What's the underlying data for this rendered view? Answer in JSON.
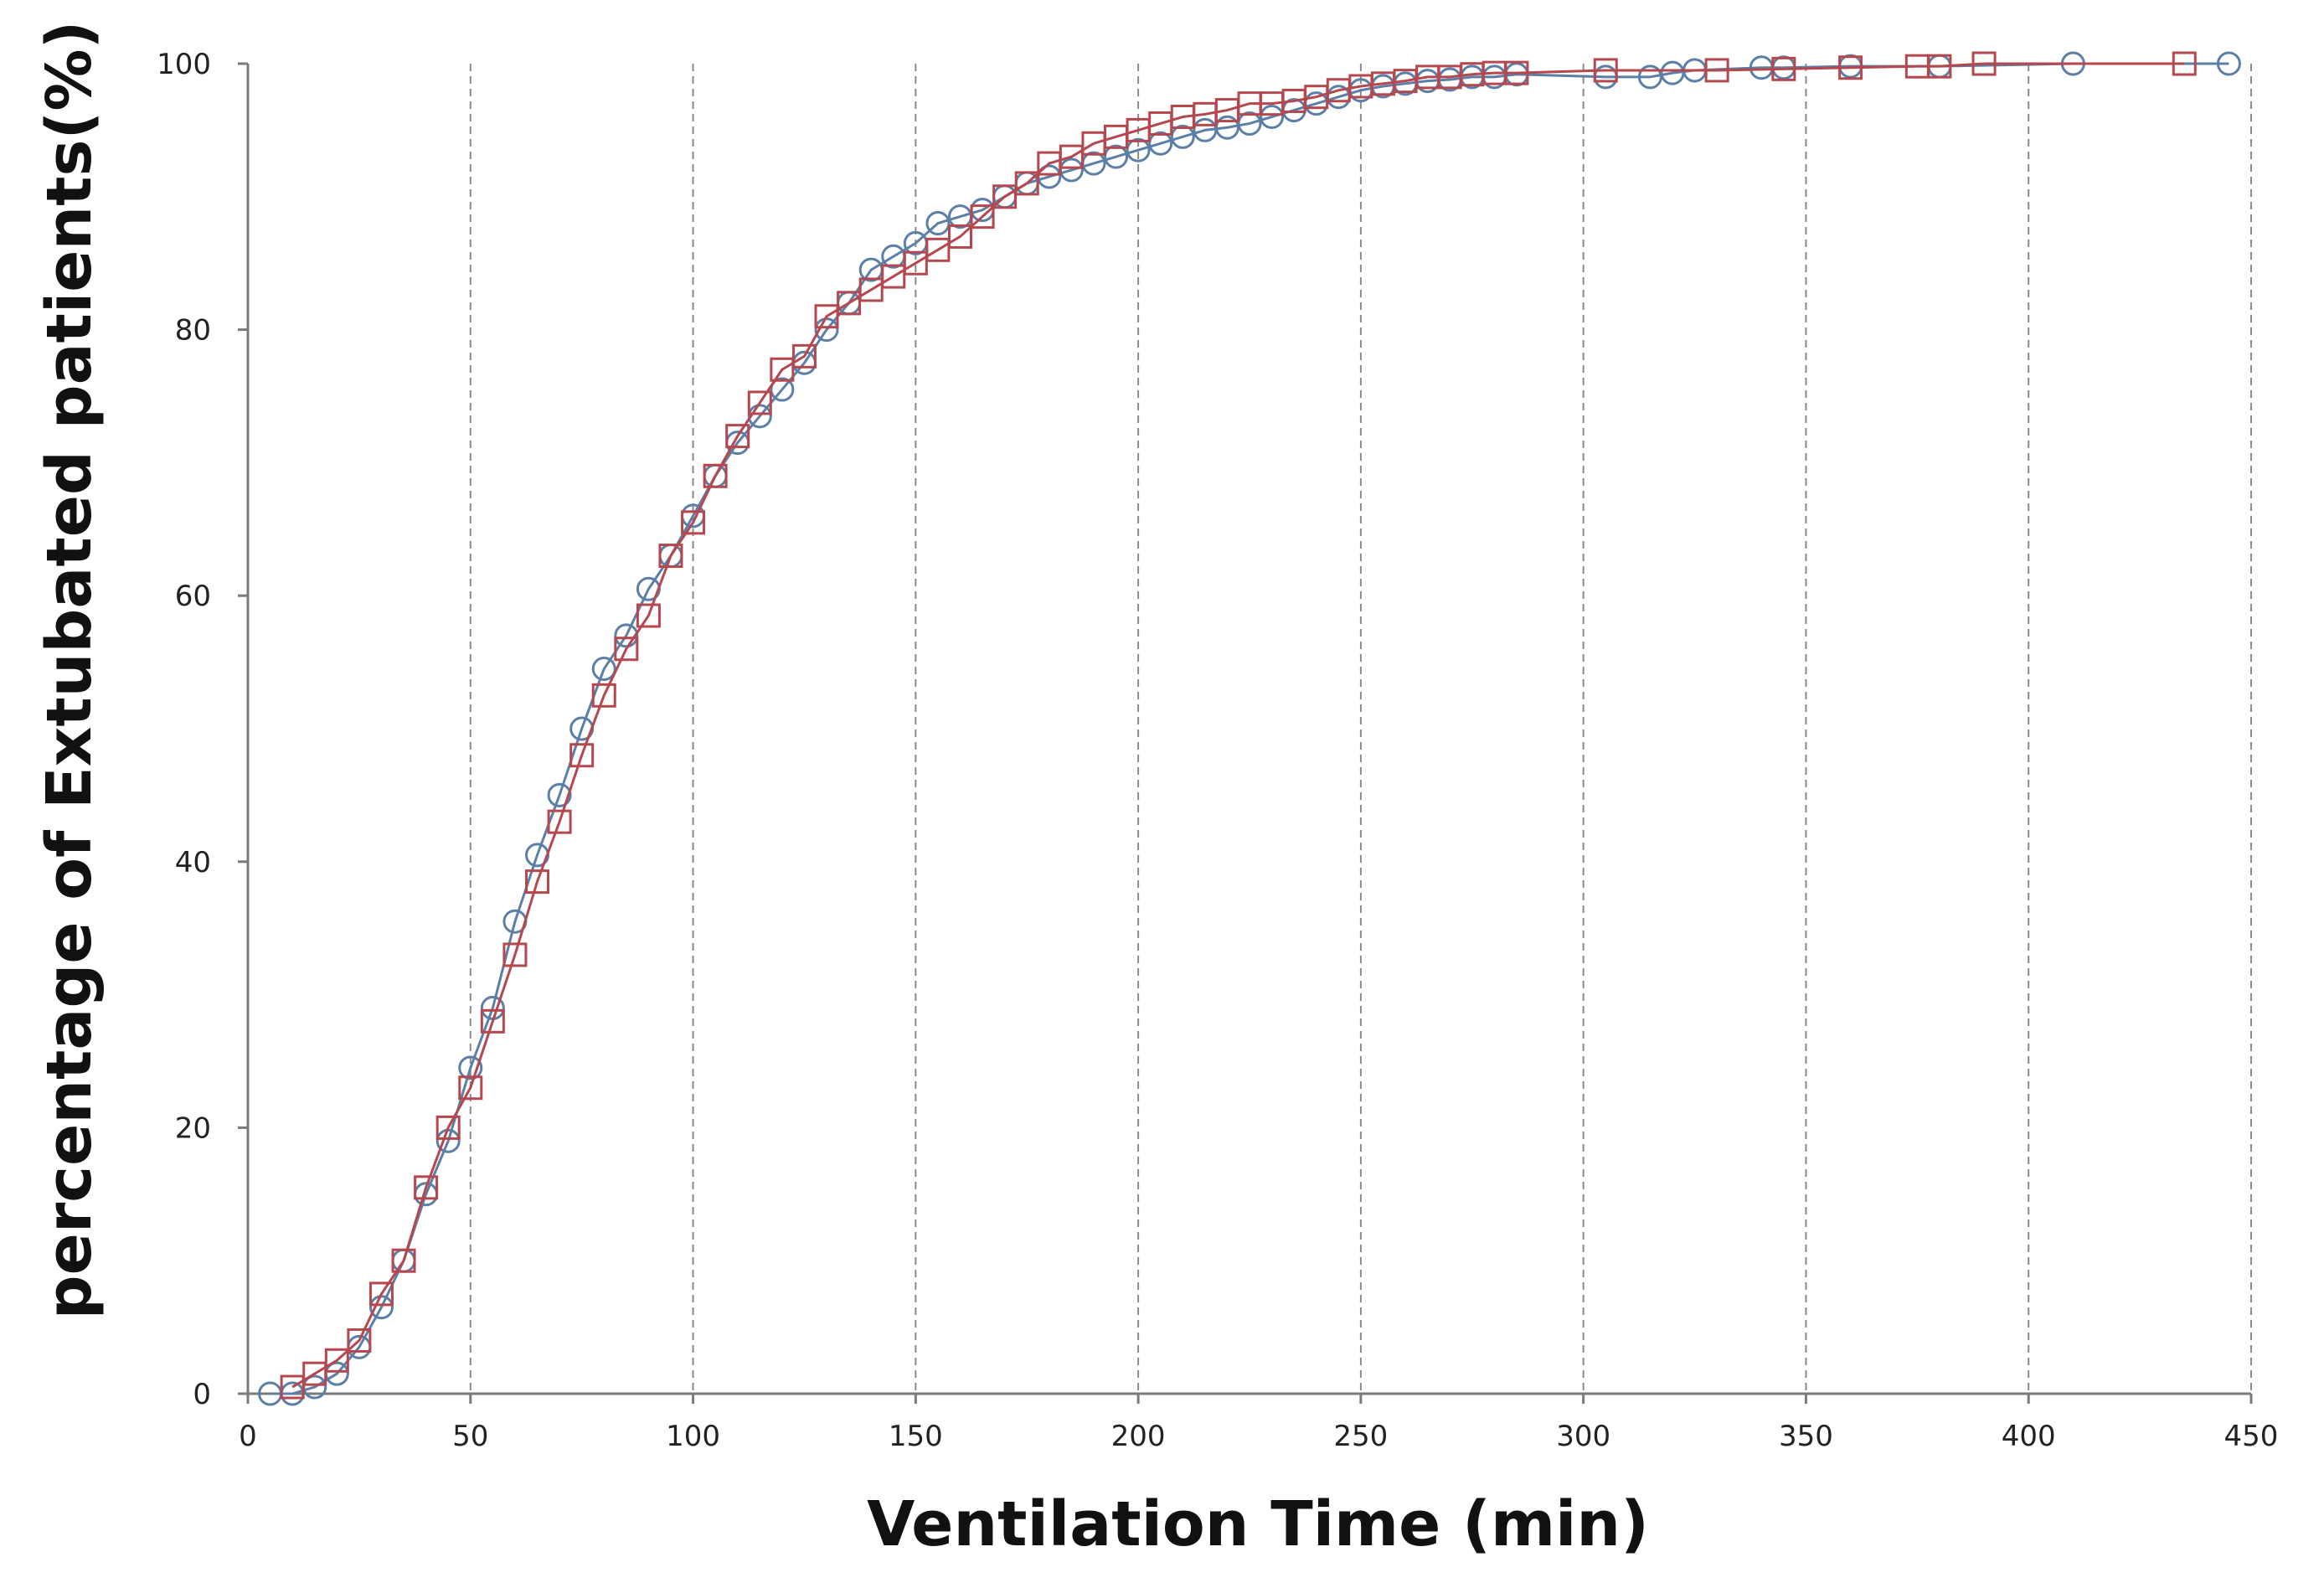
{
  "chart_data": {
    "type": "line",
    "title": "",
    "xlabel": "Ventilation Time (min)",
    "ylabel": "percentage of Extubated patients(%)",
    "xlim": [
      0,
      450
    ],
    "ylim": [
      0,
      100
    ],
    "xticks": [
      0,
      50,
      100,
      150,
      200,
      250,
      300,
      350,
      400,
      450
    ],
    "yticks": [
      0,
      20,
      40,
      60,
      80,
      100
    ],
    "vertical_gridlines": true,
    "legend": "none",
    "series": [
      {
        "name": "circle-series",
        "marker": "circle",
        "color": "#5b7fa6",
        "x": [
          5,
          10,
          15,
          20,
          25,
          30,
          35,
          40,
          45,
          50,
          55,
          60,
          65,
          70,
          75,
          80,
          85,
          90,
          95,
          100,
          105,
          110,
          115,
          120,
          125,
          130,
          135,
          140,
          145,
          150,
          155,
          160,
          165,
          170,
          175,
          180,
          185,
          190,
          195,
          200,
          205,
          210,
          215,
          220,
          225,
          230,
          235,
          240,
          245,
          250,
          255,
          260,
          265,
          270,
          275,
          280,
          285,
          305,
          315,
          320,
          325,
          340,
          345,
          360,
          380,
          410,
          445
        ],
        "y": [
          0,
          0,
          0.5,
          1.5,
          3.5,
          6.5,
          10,
          15,
          19,
          24.5,
          29,
          35.5,
          40.5,
          45,
          50,
          54.5,
          57,
          60.5,
          63,
          66,
          69,
          71.5,
          73.5,
          75.5,
          77.5,
          80,
          82,
          84.5,
          85.5,
          86.5,
          88,
          88.5,
          89,
          90,
          91,
          91.5,
          92,
          92.5,
          93,
          93.5,
          94,
          94.5,
          95,
          95.2,
          95.5,
          96,
          96.5,
          97,
          97.5,
          98,
          98.3,
          98.5,
          98.7,
          98.8,
          99,
          99,
          99.2,
          99,
          99,
          99.3,
          99.5,
          99.7,
          99.7,
          99.8,
          99.8,
          100,
          100
        ]
      },
      {
        "name": "square-series",
        "marker": "square",
        "color": "#b5484e",
        "x": [
          10,
          15,
          20,
          25,
          30,
          35,
          40,
          45,
          50,
          55,
          60,
          65,
          70,
          75,
          80,
          85,
          90,
          95,
          100,
          105,
          110,
          115,
          120,
          125,
          130,
          135,
          140,
          145,
          150,
          155,
          160,
          165,
          170,
          175,
          180,
          185,
          190,
          195,
          200,
          205,
          210,
          215,
          220,
          225,
          230,
          235,
          240,
          245,
          250,
          255,
          260,
          265,
          270,
          275,
          280,
          285,
          305,
          330,
          345,
          360,
          375,
          380,
          390,
          435
        ],
        "y": [
          0.5,
          1.5,
          2.5,
          4,
          7.5,
          10,
          15.5,
          20,
          23,
          28,
          33,
          38.5,
          43,
          48,
          52.5,
          56,
          58.5,
          63,
          65.5,
          69,
          72,
          74.5,
          77,
          78,
          81,
          82,
          83,
          84,
          85,
          86,
          87,
          88.5,
          90,
          91,
          92.5,
          93,
          94,
          94.5,
          95,
          95.5,
          96,
          96.2,
          96.5,
          97,
          97,
          97.2,
          97.5,
          98,
          98.3,
          98.5,
          98.7,
          99,
          99,
          99.2,
          99.3,
          99.3,
          99.5,
          99.5,
          99.6,
          99.7,
          99.8,
          99.8,
          100,
          100
        ]
      }
    ]
  }
}
